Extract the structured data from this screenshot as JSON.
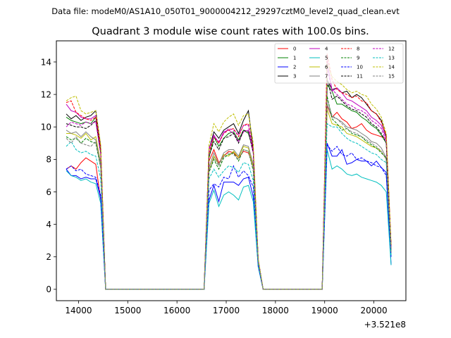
{
  "chart_data": {
    "type": "line",
    "suptitle": "Data file: modeM0/AS1A10_050T01_9000004212_29297cztM0_level2_quad_clean.evt",
    "title": "Quadrant 3 module wise count rates with 100.0s bins.",
    "xlabel": "",
    "ylabel": "",
    "x_offset_label": "+3.521e8",
    "xlim": [
      13550,
      20650
    ],
    "ylim": [
      -0.7,
      15.3
    ],
    "x_ticks": [
      14000,
      15000,
      16000,
      17000,
      18000,
      19000,
      20000
    ],
    "y_ticks": [
      0,
      2,
      4,
      6,
      8,
      10,
      12,
      14
    ],
    "grid": false,
    "legend_position": "top-right",
    "x": [
      13750,
      13850,
      13950,
      14050,
      14150,
      14250,
      14350,
      14450,
      14550,
      14650,
      14750,
      14850,
      14950,
      15050,
      15150,
      15250,
      15350,
      15450,
      15550,
      15650,
      15750,
      15850,
      15950,
      16050,
      16150,
      16250,
      16350,
      16450,
      16550,
      16650,
      16750,
      16850,
      16950,
      17050,
      17150,
      17250,
      17350,
      17450,
      17550,
      17650,
      17750,
      17850,
      17950,
      18050,
      18150,
      18250,
      18350,
      18450,
      18550,
      18650,
      18750,
      18850,
      18950,
      19050,
      19150,
      19250,
      19350,
      19450,
      19550,
      19650,
      19750,
      19850,
      19950,
      20050,
      20150,
      20250,
      20350
    ],
    "series": [
      {
        "name": "0",
        "color": "#ff0000",
        "dash": "solid",
        "values": [
          7.4,
          7.6,
          7.4,
          7.8,
          8.1,
          7.9,
          7.7,
          5.5,
          0,
          0,
          0,
          0,
          0,
          0,
          0,
          0,
          0,
          0,
          0,
          0,
          0,
          0,
          0,
          0,
          0,
          0,
          0,
          0,
          0,
          7.9,
          8.6,
          7.8,
          8.2,
          8.5,
          8.4,
          8.1,
          8.5,
          8.4,
          7.6,
          1.7,
          0,
          0,
          0,
          0,
          0,
          0,
          0,
          0,
          0,
          0,
          0,
          0,
          0,
          11.3,
          10.6,
          10.9,
          10.5,
          10.3,
          9.9,
          10.0,
          10.2,
          9.8,
          9.6,
          9.5,
          9.4,
          9.3,
          2.7
        ]
      },
      {
        "name": "1",
        "color": "#008000",
        "dash": "solid",
        "values": [
          10.6,
          10.4,
          10.3,
          10.2,
          10.3,
          10.2,
          10.6,
          8.4,
          0,
          0,
          0,
          0,
          0,
          0,
          0,
          0,
          0,
          0,
          0,
          0,
          0,
          0,
          0,
          0,
          0,
          0,
          0,
          0,
          0,
          8.1,
          9.4,
          8.8,
          9.3,
          9.6,
          9.7,
          9.2,
          9.8,
          9.6,
          8.6,
          1.8,
          0,
          0,
          0,
          0,
          0,
          0,
          0,
          0,
          0,
          0,
          0,
          0,
          0,
          12.6,
          12.2,
          11.4,
          11.4,
          11.2,
          11.0,
          10.9,
          10.6,
          10.4,
          10.1,
          9.9,
          9.5,
          9.0,
          2.5
        ]
      },
      {
        "name": "2",
        "color": "#0000ff",
        "dash": "solid",
        "values": [
          7.4,
          7.0,
          7.0,
          6.8,
          6.9,
          6.8,
          6.8,
          5.6,
          0,
          0,
          0,
          0,
          0,
          0,
          0,
          0,
          0,
          0,
          0,
          0,
          0,
          0,
          0,
          0,
          0,
          0,
          0,
          0,
          0,
          5.5,
          6.4,
          5.4,
          6.6,
          6.6,
          6.6,
          6.4,
          6.8,
          6.9,
          5.7,
          1.4,
          0,
          0,
          0,
          0,
          0,
          0,
          0,
          0,
          0,
          0,
          0,
          0,
          0,
          9.0,
          8.2,
          8.2,
          8.6,
          7.7,
          7.8,
          8.0,
          7.9,
          7.9,
          7.6,
          7.9,
          7.5,
          7.2,
          1.5
        ]
      },
      {
        "name": "3",
        "color": "#000000",
        "dash": "solid",
        "values": [
          10.8,
          10.5,
          10.7,
          10.4,
          10.6,
          10.7,
          11.0,
          8.8,
          0,
          0,
          0,
          0,
          0,
          0,
          0,
          0,
          0,
          0,
          0,
          0,
          0,
          0,
          0,
          0,
          0,
          0,
          0,
          0,
          0,
          8.6,
          9.7,
          9.3,
          9.8,
          10.0,
          10.2,
          9.6,
          10.4,
          11.0,
          8.6,
          1.8,
          0,
          0,
          0,
          0,
          0,
          0,
          0,
          0,
          0,
          0,
          0,
          0,
          0,
          12.9,
          12.3,
          12.4,
          12.1,
          12.2,
          11.8,
          12.0,
          11.8,
          11.4,
          11.0,
          10.8,
          10.4,
          9.4,
          2.6
        ]
      },
      {
        "name": "4",
        "color": "#bf00bf",
        "dash": "solid",
        "values": [
          11.4,
          11.0,
          10.9,
          10.6,
          10.5,
          10.5,
          10.7,
          8.6,
          0,
          0,
          0,
          0,
          0,
          0,
          0,
          0,
          0,
          0,
          0,
          0,
          0,
          0,
          0,
          0,
          0,
          0,
          0,
          0,
          0,
          8.6,
          9.5,
          9.0,
          9.7,
          9.8,
          9.6,
          9.1,
          9.7,
          9.8,
          8.4,
          1.8,
          0,
          0,
          0,
          0,
          0,
          0,
          0,
          0,
          0,
          0,
          0,
          0,
          0,
          14.1,
          12.2,
          12.4,
          12.1,
          11.7,
          11.6,
          11.4,
          11.2,
          11.0,
          10.6,
          10.4,
          10.1,
          9.3,
          2.6
        ]
      },
      {
        "name": "5",
        "color": "#00bfbf",
        "dash": "solid",
        "values": [
          7.3,
          7.0,
          6.9,
          6.7,
          6.8,
          6.6,
          6.5,
          5.3,
          0,
          0,
          0,
          0,
          0,
          0,
          0,
          0,
          0,
          0,
          0,
          0,
          0,
          0,
          0,
          0,
          0,
          0,
          0,
          0,
          0,
          5.3,
          6.1,
          5.1,
          5.8,
          6.0,
          5.8,
          5.5,
          6.3,
          6.4,
          5.4,
          1.4,
          0,
          0,
          0,
          0,
          0,
          0,
          0,
          0,
          0,
          0,
          0,
          0,
          0,
          8.6,
          7.4,
          7.6,
          7.4,
          7.1,
          7.0,
          7.1,
          6.9,
          6.8,
          6.7,
          6.6,
          6.4,
          6.0,
          1.5
        ]
      },
      {
        "name": "6",
        "color": "#bfbf00",
        "dash": "solid",
        "values": [
          9.6,
          9.6,
          9.5,
          9.3,
          9.6,
          9.2,
          9.4,
          7.8,
          0,
          0,
          0,
          0,
          0,
          0,
          0,
          0,
          0,
          0,
          0,
          0,
          0,
          0,
          0,
          0,
          0,
          0,
          0,
          0,
          0,
          7.3,
          8.2,
          7.7,
          8.3,
          8.2,
          8.5,
          8.1,
          8.8,
          8.7,
          7.5,
          1.7,
          0,
          0,
          0,
          0,
          0,
          0,
          0,
          0,
          0,
          0,
          0,
          0,
          0,
          11.1,
          10.2,
          10.1,
          10.0,
          9.6,
          9.5,
          9.4,
          9.2,
          9.0,
          8.8,
          8.7,
          8.5,
          8.0,
          2.2
        ]
      },
      {
        "name": "7",
        "color": "#808080",
        "dash": "solid",
        "values": [
          9.8,
          9.6,
          9.7,
          9.4,
          9.7,
          9.4,
          9.2,
          7.7,
          0,
          0,
          0,
          0,
          0,
          0,
          0,
          0,
          0,
          0,
          0,
          0,
          0,
          0,
          0,
          0,
          0,
          0,
          0,
          0,
          0,
          7.5,
          8.4,
          7.7,
          8.4,
          8.6,
          8.6,
          8.2,
          8.9,
          8.8,
          7.7,
          1.7,
          0,
          0,
          0,
          0,
          0,
          0,
          0,
          0,
          0,
          0,
          0,
          0,
          0,
          11.4,
          10.6,
          10.5,
          10.3,
          10.0,
          9.9,
          9.8,
          9.6,
          9.4,
          9.1,
          9.0,
          8.7,
          8.1,
          2.3
        ]
      },
      {
        "name": "8",
        "color": "#ff0000",
        "dash": "dashed",
        "values": [
          11.5,
          11.6,
          10.9,
          10.7,
          10.5,
          10.4,
          10.6,
          8.7,
          0,
          0,
          0,
          0,
          0,
          0,
          0,
          0,
          0,
          0,
          0,
          0,
          0,
          0,
          0,
          0,
          0,
          0,
          0,
          0,
          0,
          8.4,
          9.4,
          9.0,
          9.6,
          9.8,
          9.9,
          9.4,
          10.1,
          10.2,
          8.6,
          1.8,
          0,
          0,
          0,
          0,
          0,
          0,
          0,
          0,
          0,
          0,
          0,
          0,
          0,
          14.5,
          12.9,
          12.3,
          12.1,
          12.0,
          11.8,
          11.9,
          11.6,
          11.5,
          11.0,
          10.8,
          10.3,
          9.5,
          2.7
        ]
      },
      {
        "name": "9",
        "color": "#008000",
        "dash": "dashed",
        "values": [
          9.4,
          9.2,
          9.3,
          9.0,
          9.3,
          9.1,
          9.0,
          7.5,
          0,
          0,
          0,
          0,
          0,
          0,
          0,
          0,
          0,
          0,
          0,
          0,
          0,
          0,
          0,
          0,
          0,
          0,
          0,
          0,
          0,
          7.2,
          8.0,
          7.4,
          8.1,
          8.3,
          8.4,
          7.9,
          8.6,
          8.5,
          7.3,
          1.6,
          0,
          0,
          0,
          0,
          0,
          0,
          0,
          0,
          0,
          0,
          0,
          0,
          0,
          11.9,
          10.5,
          10.2,
          9.8,
          9.9,
          9.6,
          9.5,
          9.4,
          9.1,
          8.9,
          8.7,
          8.4,
          8.1,
          2.3
        ]
      },
      {
        "name": "10",
        "color": "#0000ff",
        "dash": "dashed",
        "values": [
          7.4,
          7.6,
          7.3,
          7.4,
          7.1,
          7.0,
          6.9,
          5.8,
          0,
          0,
          0,
          0,
          0,
          0,
          0,
          0,
          0,
          0,
          0,
          0,
          0,
          0,
          0,
          0,
          0,
          0,
          0,
          0,
          0,
          6.1,
          6.5,
          6.3,
          6.9,
          6.8,
          7.6,
          6.9,
          7.3,
          7.0,
          6.3,
          1.5,
          0,
          0,
          0,
          0,
          0,
          0,
          0,
          0,
          0,
          0,
          0,
          0,
          0,
          8.9,
          8.5,
          8.8,
          8.3,
          8.2,
          8.4,
          8.0,
          8.1,
          7.9,
          7.8,
          7.6,
          7.5,
          7.0,
          2.0
        ]
      },
      {
        "name": "11",
        "color": "#000000",
        "dash": "dashed",
        "values": [
          10.2,
          10.1,
          10.0,
          10.0,
          9.9,
          10.1,
          10.4,
          8.4,
          0,
          0,
          0,
          0,
          0,
          0,
          0,
          0,
          0,
          0,
          0,
          0,
          0,
          0,
          0,
          0,
          0,
          0,
          0,
          0,
          0,
          8.2,
          9.1,
          8.6,
          9.3,
          9.4,
          9.6,
          9.0,
          9.8,
          9.7,
          8.4,
          1.8,
          0,
          0,
          0,
          0,
          0,
          0,
          0,
          0,
          0,
          0,
          0,
          0,
          0,
          13.0,
          11.7,
          11.9,
          11.6,
          11.3,
          11.1,
          11.0,
          10.8,
          10.6,
          10.2,
          10.0,
          9.6,
          9.0,
          2.6
        ]
      },
      {
        "name": "12",
        "color": "#bf00bf",
        "dash": "dashed",
        "values": [
          10.0,
          10.3,
          10.2,
          10.1,
          10.3,
          10.2,
          10.3,
          8.3,
          0,
          0,
          0,
          0,
          0,
          0,
          0,
          0,
          0,
          0,
          0,
          0,
          0,
          0,
          0,
          0,
          0,
          0,
          0,
          0,
          0,
          8.7,
          9.4,
          9.1,
          9.6,
          9.9,
          9.8,
          9.5,
          10.1,
          10.1,
          8.5,
          1.8,
          0,
          0,
          0,
          0,
          0,
          0,
          0,
          0,
          0,
          0,
          0,
          0,
          0,
          13.6,
          12.3,
          12.0,
          11.7,
          11.4,
          11.3,
          11.1,
          11.0,
          10.8,
          10.4,
          10.2,
          9.9,
          9.1,
          2.6
        ]
      },
      {
        "name": "13",
        "color": "#00bfbf",
        "dash": "dashed",
        "values": [
          8.8,
          9.1,
          8.6,
          8.4,
          8.5,
          8.3,
          8.2,
          6.8,
          0,
          0,
          0,
          0,
          0,
          0,
          0,
          0,
          0,
          0,
          0,
          0,
          0,
          0,
          0,
          0,
          0,
          0,
          0,
          0,
          0,
          6.8,
          7.4,
          6.9,
          7.3,
          7.6,
          7.5,
          7.2,
          7.8,
          7.7,
          6.7,
          1.6,
          0,
          0,
          0,
          0,
          0,
          0,
          0,
          0,
          0,
          0,
          0,
          0,
          0,
          10.2,
          10.0,
          10.0,
          9.6,
          9.3,
          9.1,
          9.0,
          8.8,
          8.6,
          8.4,
          8.3,
          8.0,
          7.8,
          2.1
        ]
      },
      {
        "name": "14",
        "color": "#bfbf00",
        "dash": "dashed",
        "values": [
          11.6,
          11.8,
          11.9,
          11.0,
          10.8,
          10.9,
          11.0,
          8.9,
          0,
          0,
          0,
          0,
          0,
          0,
          0,
          0,
          0,
          0,
          0,
          0,
          0,
          0,
          0,
          0,
          0,
          0,
          0,
          0,
          0,
          8.9,
          10.2,
          9.7,
          10.3,
          10.6,
          10.8,
          10.1,
          10.7,
          10.8,
          9.0,
          1.9,
          0,
          0,
          0,
          0,
          0,
          0,
          0,
          0,
          0,
          0,
          0,
          0,
          0,
          13.9,
          13.1,
          12.8,
          12.6,
          12.3,
          12.1,
          12.2,
          12.0,
          11.9,
          11.4,
          11.1,
          10.6,
          9.6,
          2.7
        ]
      },
      {
        "name": "15",
        "color": "#808080",
        "dash": "dashed",
        "values": [
          9.3,
          9.0,
          9.4,
          9.0,
          8.9,
          8.8,
          9.1,
          7.5,
          0,
          0,
          0,
          0,
          0,
          0,
          0,
          0,
          0,
          0,
          0,
          0,
          0,
          0,
          0,
          0,
          0,
          0,
          0,
          0,
          0,
          7.3,
          8.1,
          7.6,
          8.2,
          8.4,
          8.3,
          8.0,
          8.6,
          8.5,
          7.4,
          1.7,
          0,
          0,
          0,
          0,
          0,
          0,
          0,
          0,
          0,
          0,
          0,
          0,
          0,
          11.7,
          10.7,
          10.5,
          10.2,
          9.9,
          9.7,
          9.6,
          9.4,
          9.2,
          9.0,
          8.8,
          8.5,
          8.0,
          2.3
        ]
      }
    ]
  }
}
